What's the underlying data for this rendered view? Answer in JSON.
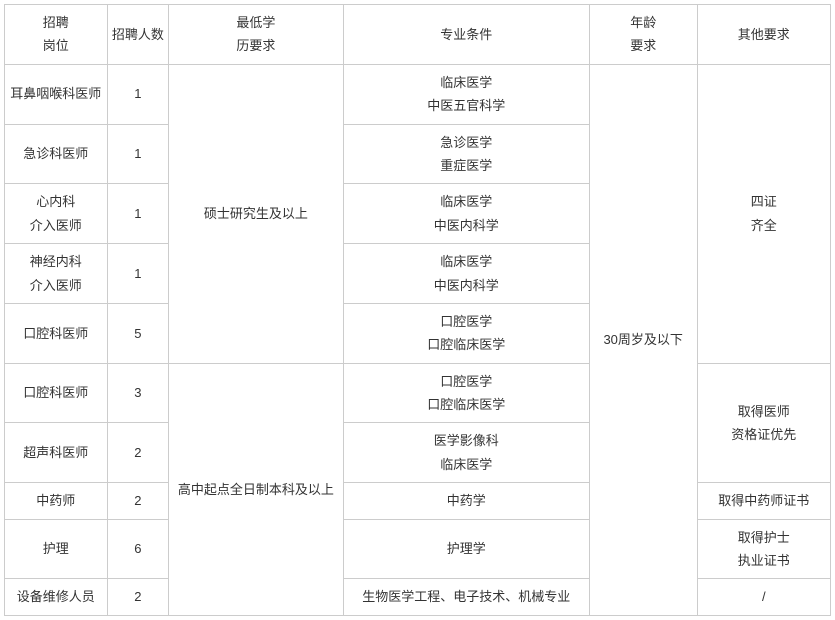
{
  "headers": {
    "position": "招聘\n岗位",
    "count": "招聘人数",
    "education": "最低学\n历要求",
    "major": "专业条件",
    "age": "年龄\n要求",
    "other": "其他要求"
  },
  "education_groups": {
    "masters": "硕士研究生及以上",
    "bachelor": "高中起点全日制本科及以上"
  },
  "age_group": "30周岁及以下",
  "other_groups": {
    "four_cert": "四证\n齐全",
    "doctor_pref": "取得医师\n资格证优先",
    "pharmacist": "取得中药师证书",
    "nurse": "取得护士\n执业证书",
    "none": "/"
  },
  "rows": [
    {
      "position": "耳鼻咽喉科医师",
      "count": "1",
      "major": "临床医学\n中医五官科学"
    },
    {
      "position": "急诊科医师",
      "count": "1",
      "major": "急诊医学\n重症医学"
    },
    {
      "position": "心内科\n介入医师",
      "count": "1",
      "major": "临床医学\n中医内科学"
    },
    {
      "position": "神经内科\n介入医师",
      "count": "1",
      "major": "临床医学\n中医内科学"
    },
    {
      "position": "口腔科医师",
      "count": "5",
      "major": "口腔医学\n口腔临床医学"
    },
    {
      "position": "口腔科医师",
      "count": "3",
      "major": "口腔医学\n口腔临床医学"
    },
    {
      "position": "超声科医师",
      "count": "2",
      "major": "医学影像科\n临床医学"
    },
    {
      "position": "中药师",
      "count": "2",
      "major": "中药学"
    },
    {
      "position": "护理",
      "count": "6",
      "major": "护理学"
    },
    {
      "position": "设备维修人员",
      "count": "2",
      "major": "生物医学工程、电子技术、机械专业"
    }
  ]
}
